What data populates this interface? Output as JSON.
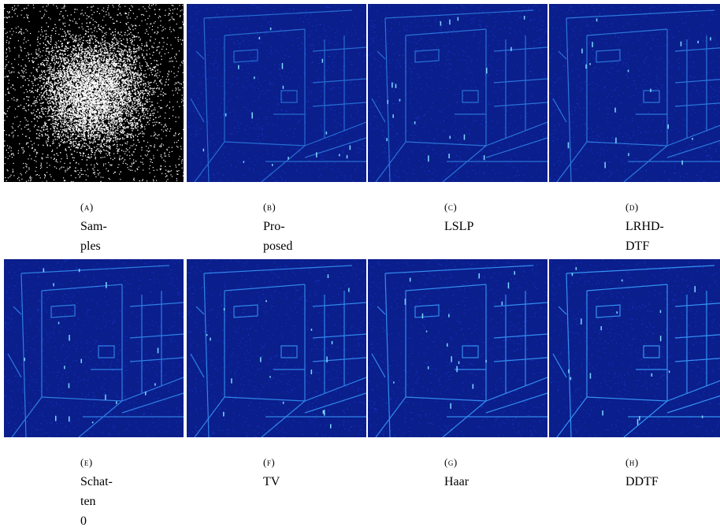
{
  "figure": {
    "panels": [
      {
        "tag": "(a)",
        "caption": "Sam-\nples",
        "kind": "samples"
      },
      {
        "tag": "(b)",
        "caption": "Pro-\nposed",
        "kind": "error"
      },
      {
        "tag": "(c)",
        "caption": "LSLP",
        "kind": "error"
      },
      {
        "tag": "(d)",
        "caption": "LRHD-\nDTF",
        "kind": "error"
      },
      {
        "tag": "(e)",
        "caption": "Schat-\nten\n0",
        "kind": "error"
      },
      {
        "tag": "(f)",
        "caption": "TV",
        "kind": "error"
      },
      {
        "tag": "(g)",
        "caption": "Haar",
        "kind": "error"
      },
      {
        "tag": "(h)",
        "caption": "DDTF",
        "kind": "error"
      }
    ],
    "colors": {
      "samples_bg": "#000000",
      "samples_dots": "#ffffff",
      "error_bg": "#0a1e8c",
      "error_edges": "#3aa0ff"
    }
  }
}
